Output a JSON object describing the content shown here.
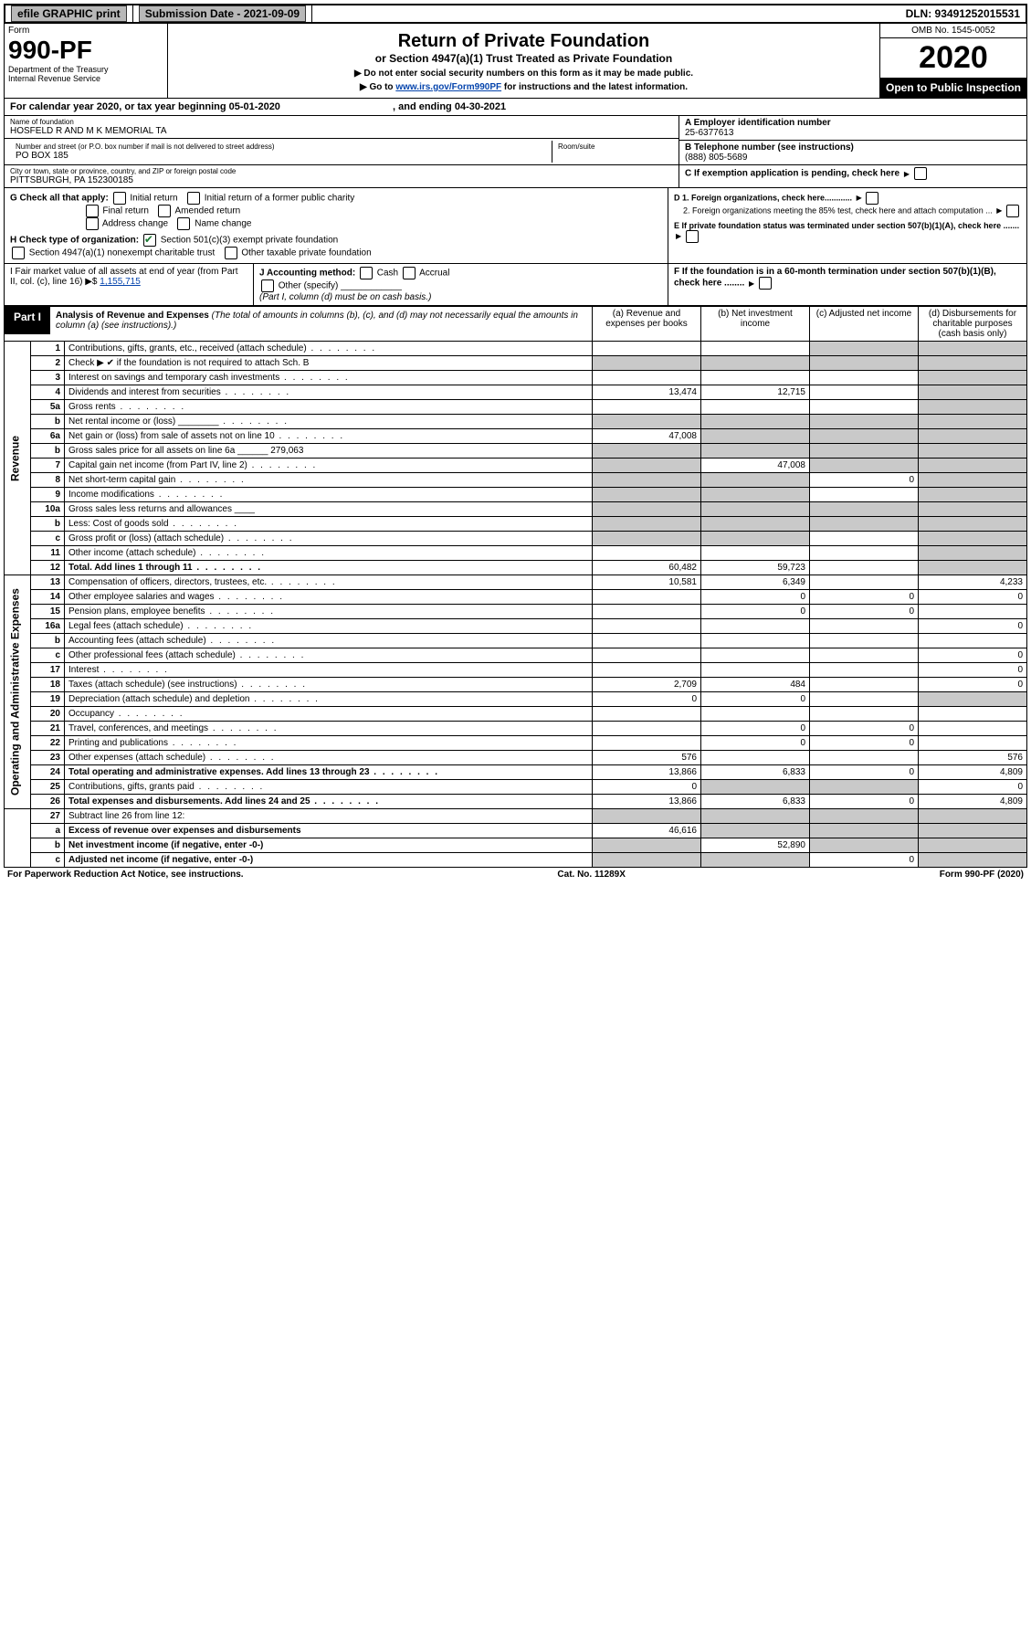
{
  "topbar": {
    "efile_label": "efile GRAPHIC print",
    "submission_label": "Submission Date - 2021-09-09",
    "dln_label": "DLN: 93491252015531"
  },
  "header": {
    "form_word": "Form",
    "form_number": "990-PF",
    "dept1": "Department of the Treasury",
    "dept2": "Internal Revenue Service",
    "title": "Return of Private Foundation",
    "subtitle": "or Section 4947(a)(1) Trust Treated as Private Foundation",
    "note1": "▶ Do not enter social security numbers on this form as it may be made public.",
    "note2_prefix": "▶ Go to ",
    "note2_link": "www.irs.gov/Form990PF",
    "note2_suffix": " for instructions and the latest information.",
    "omb": "OMB No. 1545-0052",
    "year": "2020",
    "open_pub": "Open to Public Inspection"
  },
  "calyear": {
    "prefix": "For calendar year 2020, or tax year beginning ",
    "begin": "05-01-2020",
    "mid": " , and ending ",
    "end": "04-30-2021"
  },
  "entity": {
    "name_label": "Name of foundation",
    "name": "HOSFELD R AND M K MEMORIAL TA",
    "addr_label": "Number and street (or P.O. box number if mail is not delivered to street address)",
    "addr": "PO BOX 185",
    "room_label": "Room/suite",
    "city_label": "City or town, state or province, country, and ZIP or foreign postal code",
    "city": "PITTSBURGH, PA  152300185",
    "ein_label": "A Employer identification number",
    "ein": "25-6377613",
    "phone_label": "B Telephone number (see instructions)",
    "phone": "(888) 805-5689",
    "c_label": "C If exemption application is pending, check here"
  },
  "sectionG": {
    "label": "G Check all that apply:",
    "opts": [
      "Initial return",
      "Initial return of a former public charity",
      "Final return",
      "Amended return",
      "Address change",
      "Name change"
    ]
  },
  "sectionH": {
    "label": "H Check type of organization:",
    "opt1": "Section 501(c)(3) exempt private foundation",
    "opt2": "Section 4947(a)(1) nonexempt charitable trust",
    "opt3": "Other taxable private foundation"
  },
  "sectionD": {
    "d1": "D 1. Foreign organizations, check here............",
    "d2": "2. Foreign organizations meeting the 85% test, check here and attach computation ...",
    "e": "E  If private foundation status was terminated under section 507(b)(1)(A), check here .......",
    "f": "F  If the foundation is in a 60-month termination under section 507(b)(1)(B), check here ........"
  },
  "fmv": {
    "i_label": "I Fair market value of all assets at end of year (from Part II, col. (c), line 16) ▶$",
    "i_val": "1,155,715",
    "j_label": "J Accounting method:",
    "j_cash": "Cash",
    "j_accrual": "Accrual",
    "j_other": "Other (specify)",
    "j_note": "(Part I, column (d) must be on cash basis.)"
  },
  "part1": {
    "tab": "Part I",
    "title": "Analysis of Revenue and Expenses",
    "title_note": " (The total of amounts in columns (b), (c), and (d) may not necessarily equal the amounts in column (a) (see instructions).)",
    "col_a": "(a)   Revenue and expenses per books",
    "col_b": "(b)  Net investment income",
    "col_c": "(c)  Adjusted net income",
    "col_d": "(d)  Disbursements for charitable purposes (cash basis only)"
  },
  "sections": {
    "revenue": "Revenue",
    "expenses": "Operating and Administrative Expenses"
  },
  "rows": [
    {
      "n": "1",
      "desc": "Contributions, gifts, grants, etc., received (attach schedule)",
      "a": "",
      "b": "",
      "c": "s",
      "d": "s"
    },
    {
      "n": "2",
      "desc": "Check ▶ ✔ if the foundation is not required to attach Sch. B",
      "a": "s",
      "b": "s",
      "c": "s",
      "d": "s",
      "nodots": true
    },
    {
      "n": "3",
      "desc": "Interest on savings and temporary cash investments",
      "a": "",
      "b": "",
      "c": "",
      "d": "s"
    },
    {
      "n": "4",
      "desc": "Dividends and interest from securities",
      "a": "13,474",
      "b": "12,715",
      "c": "",
      "d": "s"
    },
    {
      "n": "5a",
      "desc": "Gross rents",
      "a": "",
      "b": "",
      "c": "",
      "d": "s"
    },
    {
      "n": "b",
      "desc": "Net rental income or (loss)  ________",
      "a": "s",
      "b": "s",
      "c": "s",
      "d": "s"
    },
    {
      "n": "6a",
      "desc": "Net gain or (loss) from sale of assets not on line 10",
      "a": "47,008",
      "b": "s",
      "c": "s",
      "d": "s"
    },
    {
      "n": "b",
      "desc": "Gross sales price for all assets on line 6a ______ 279,063",
      "a": "s",
      "b": "s",
      "c": "s",
      "d": "s",
      "nodots": true
    },
    {
      "n": "7",
      "desc": "Capital gain net income (from Part IV, line 2)",
      "a": "s",
      "b": "47,008",
      "c": "s",
      "d": "s"
    },
    {
      "n": "8",
      "desc": "Net short-term capital gain",
      "a": "s",
      "b": "s",
      "c": "0",
      "d": "s"
    },
    {
      "n": "9",
      "desc": "Income modifications",
      "a": "s",
      "b": "s",
      "c": "",
      "d": "s"
    },
    {
      "n": "10a",
      "desc": "Gross sales less returns and allowances  ____",
      "a": "s",
      "b": "s",
      "c": "s",
      "d": "s",
      "nodots": true
    },
    {
      "n": "b",
      "desc": "Less: Cost of goods sold",
      "a": "s",
      "b": "s",
      "c": "s",
      "d": "s"
    },
    {
      "n": "c",
      "desc": "Gross profit or (loss) (attach schedule)",
      "a": "s",
      "b": "s",
      "c": "",
      "d": "s"
    },
    {
      "n": "11",
      "desc": "Other income (attach schedule)",
      "a": "",
      "b": "",
      "c": "",
      "d": "s"
    },
    {
      "n": "12",
      "desc": "Total. Add lines 1 through 11",
      "a": "60,482",
      "b": "59,723",
      "c": "",
      "d": "s",
      "bold": true
    }
  ],
  "exp_rows": [
    {
      "n": "13",
      "desc": "Compensation of officers, directors, trustees, etc.",
      "a": "10,581",
      "b": "6,349",
      "c": "",
      "d": "4,233"
    },
    {
      "n": "14",
      "desc": "Other employee salaries and wages",
      "a": "",
      "b": "0",
      "c": "0",
      "d": "0"
    },
    {
      "n": "15",
      "desc": "Pension plans, employee benefits",
      "a": "",
      "b": "0",
      "c": "0",
      "d": ""
    },
    {
      "n": "16a",
      "desc": "Legal fees (attach schedule)",
      "a": "",
      "b": "",
      "c": "",
      "d": "0"
    },
    {
      "n": "b",
      "desc": "Accounting fees (attach schedule)",
      "a": "",
      "b": "",
      "c": "",
      "d": ""
    },
    {
      "n": "c",
      "desc": "Other professional fees (attach schedule)",
      "a": "",
      "b": "",
      "c": "",
      "d": "0"
    },
    {
      "n": "17",
      "desc": "Interest",
      "a": "",
      "b": "",
      "c": "",
      "d": "0"
    },
    {
      "n": "18",
      "desc": "Taxes (attach schedule) (see instructions)",
      "a": "2,709",
      "b": "484",
      "c": "",
      "d": "0"
    },
    {
      "n": "19",
      "desc": "Depreciation (attach schedule) and depletion",
      "a": "0",
      "b": "0",
      "c": "",
      "d": "s"
    },
    {
      "n": "20",
      "desc": "Occupancy",
      "a": "",
      "b": "",
      "c": "",
      "d": ""
    },
    {
      "n": "21",
      "desc": "Travel, conferences, and meetings",
      "a": "",
      "b": "0",
      "c": "0",
      "d": ""
    },
    {
      "n": "22",
      "desc": "Printing and publications",
      "a": "",
      "b": "0",
      "c": "0",
      "d": ""
    },
    {
      "n": "23",
      "desc": "Other expenses (attach schedule)",
      "a": "576",
      "b": "",
      "c": "",
      "d": "576"
    },
    {
      "n": "24",
      "desc": "Total operating and administrative expenses. Add lines 13 through 23",
      "a": "13,866",
      "b": "6,833",
      "c": "0",
      "d": "4,809",
      "bold": true
    },
    {
      "n": "25",
      "desc": "Contributions, gifts, grants paid",
      "a": "0",
      "b": "s",
      "c": "s",
      "d": "0"
    },
    {
      "n": "26",
      "desc": "Total expenses and disbursements. Add lines 24 and 25",
      "a": "13,866",
      "b": "6,833",
      "c": "0",
      "d": "4,809",
      "bold": true
    }
  ],
  "bottom_rows": [
    {
      "n": "27",
      "desc": "Subtract line 26 from line 12:",
      "a": "s",
      "b": "s",
      "c": "s",
      "d": "s"
    },
    {
      "n": "a",
      "desc": "Excess of revenue over expenses and disbursements",
      "a": "46,616",
      "b": "s",
      "c": "s",
      "d": "s",
      "bold": true
    },
    {
      "n": "b",
      "desc": "Net investment income (if negative, enter -0-)",
      "a": "s",
      "b": "52,890",
      "c": "s",
      "d": "s",
      "bold": true
    },
    {
      "n": "c",
      "desc": "Adjusted net income (if negative, enter -0-)",
      "a": "s",
      "b": "s",
      "c": "0",
      "d": "s",
      "bold": true
    }
  ],
  "footer": {
    "left": "For Paperwork Reduction Act Notice, see instructions.",
    "mid": "Cat. No. 11289X",
    "right": "Form 990-PF (2020)"
  }
}
